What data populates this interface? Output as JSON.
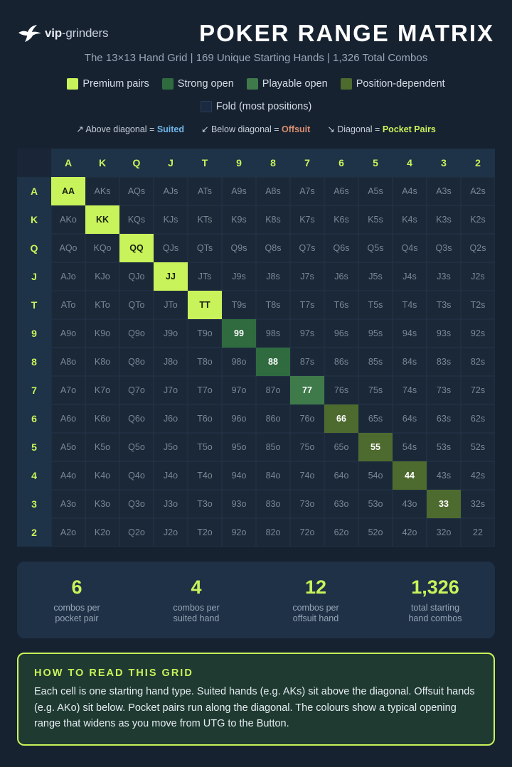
{
  "header": {
    "logo_bold": "vip",
    "logo_light": "-grinders",
    "title": "POKER RANGE MATRIX",
    "subtitle": "The 13×13 Hand Grid | 169 Unique Starting Hands | 1,326 Total Combos"
  },
  "legend": {
    "items": [
      {
        "label": "Premium pairs",
        "color": "#c9f35a"
      },
      {
        "label": "Strong open",
        "color": "#2f6b3f"
      },
      {
        "label": "Playable open",
        "color": "#3f7a4a"
      },
      {
        "label": "Position-dependent",
        "color": "#4e6b2f"
      },
      {
        "label": "Fold (most positions)",
        "color": "#1b2a40"
      }
    ]
  },
  "notes": {
    "above_prefix": "↗ Above diagonal =",
    "above_value": "Suited",
    "above_color": "#6fb6e8",
    "below_prefix": "↙ Below diagonal =",
    "below_value": "Offsuit",
    "below_color": "#d98e6e",
    "diag_prefix": "↘ Diagonal =",
    "diag_value": "Pocket Pairs",
    "diag_color": "#c9f35a"
  },
  "grid": {
    "ranks": [
      "A",
      "K",
      "Q",
      "J",
      "T",
      "9",
      "8",
      "7",
      "6",
      "5",
      "4",
      "3",
      "2"
    ],
    "pair_categories": [
      "premium",
      "premium",
      "premium",
      "premium",
      "premium",
      "strong",
      "strong",
      "playable",
      "position",
      "position",
      "position",
      "position",
      "fold"
    ],
    "category_colors": {
      "premium": "#c9f35a",
      "strong": "#2f6b3f",
      "playable": "#3f7a4a",
      "position": "#4e6b2f"
    }
  },
  "stats": [
    {
      "value": "6",
      "label_line1": "combos per",
      "label_line2": "pocket pair"
    },
    {
      "value": "4",
      "label_line1": "combos per",
      "label_line2": "suited hand"
    },
    {
      "value": "12",
      "label_line1": "combos per",
      "label_line2": "offsuit hand"
    },
    {
      "value": "1,326",
      "label_line1": "total starting",
      "label_line2": "hand combos"
    }
  ],
  "howto": {
    "title": "HOW TO READ THIS GRID",
    "body": "Each cell is one starting hand type. Suited hands (e.g. AKs) sit above the diagonal. Offsuit hands (e.g. AKo) sit below. Pocket pairs run along the diagonal. The colours show a typical opening range that widens as you move from UTG to the Button."
  }
}
